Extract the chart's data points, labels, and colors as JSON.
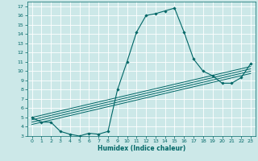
{
  "xlabel": "Humidex (Indice chaleur)",
  "bg_color": "#cce8e8",
  "grid_color": "#ffffff",
  "line_color": "#006666",
  "xlim": [
    -0.5,
    23.5
  ],
  "ylim": [
    3,
    17.5
  ],
  "xticks": [
    0,
    1,
    2,
    3,
    4,
    5,
    6,
    7,
    8,
    9,
    10,
    11,
    12,
    13,
    14,
    15,
    16,
    17,
    18,
    19,
    20,
    21,
    22,
    23
  ],
  "yticks": [
    3,
    4,
    5,
    6,
    7,
    8,
    9,
    10,
    11,
    12,
    13,
    14,
    15,
    16,
    17
  ],
  "main_x": [
    0,
    1,
    2,
    3,
    4,
    5,
    6,
    7,
    8,
    9,
    10,
    11,
    12,
    13,
    14,
    15,
    16,
    17,
    18,
    19,
    20,
    21,
    22,
    23
  ],
  "main_y": [
    5.0,
    4.5,
    4.5,
    3.5,
    3.2,
    3.0,
    3.3,
    3.2,
    3.5,
    8.0,
    11.0,
    14.2,
    16.0,
    16.2,
    16.5,
    16.8,
    14.2,
    11.3,
    10.0,
    9.5,
    8.7,
    8.7,
    9.3,
    10.8
  ],
  "reg_lines": [
    {
      "x0": 0,
      "y0": 5.0,
      "x1": 23,
      "y1": 10.5
    },
    {
      "x0": 0,
      "y0": 4.75,
      "x1": 23,
      "y1": 10.25
    },
    {
      "x0": 0,
      "y0": 4.5,
      "x1": 23,
      "y1": 10.0
    },
    {
      "x0": 0,
      "y0": 4.25,
      "x1": 23,
      "y1": 9.75
    }
  ]
}
